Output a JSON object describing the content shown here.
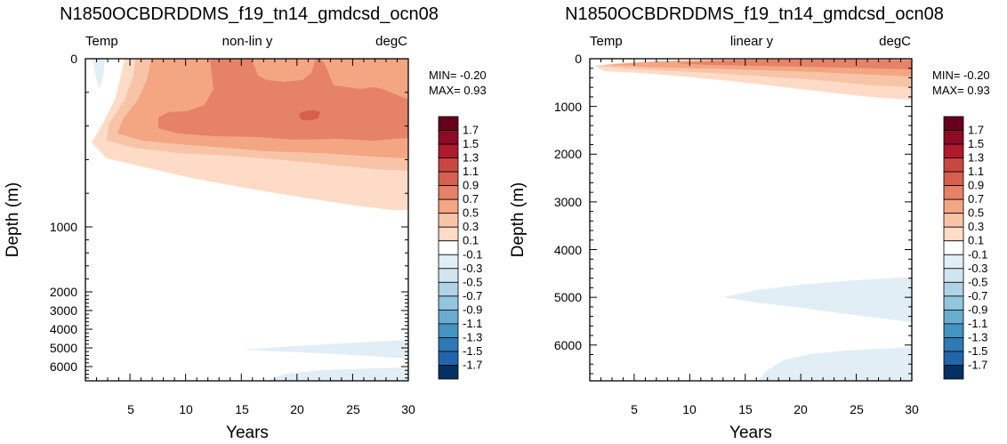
{
  "chart_data": [
    {
      "type": "heatmap",
      "title": "N1850OCBDRDDMS_f19_tn14_gmdcsd_ocn08",
      "left_string": "Temp",
      "center_string": "non-lin y",
      "right_string": "degC",
      "xlabel": "Years",
      "ylabel": "Depth (m)",
      "xlim": [
        1,
        30
      ],
      "ylim": [
        0,
        6750
      ],
      "y_scale": "non-linear (stretched upper ocean)",
      "x_ticks": [
        "5",
        "10",
        "15",
        "20",
        "25",
        "30"
      ],
      "y_ticks": [
        "0",
        "1000",
        "2000",
        "3000",
        "4000",
        "5000",
        "6000"
      ],
      "min_label": "MIN= -0.20",
      "max_label": "MAX=  0.93",
      "legend": "right"
    },
    {
      "type": "heatmap",
      "title": "N1850OCBDRDDMS_f19_tn14_gmdcsd_ocn08",
      "left_string": "Temp",
      "center_string": "linear y",
      "right_string": "degC",
      "xlabel": "Years",
      "ylabel": "Depth (m)",
      "xlim": [
        1,
        30
      ],
      "ylim": [
        0,
        6750
      ],
      "y_scale": "linear",
      "x_ticks": [
        "5",
        "10",
        "15",
        "20",
        "25",
        "30"
      ],
      "y_ticks": [
        "0",
        "1000",
        "2000",
        "3000",
        "4000",
        "5000",
        "6000"
      ],
      "min_label": "MIN= -0.20",
      "max_label": "MAX=  0.93",
      "legend": "right"
    }
  ],
  "colorbar": {
    "labels": [
      "1.7",
      "1.5",
      "1.3",
      "1.1",
      "0.9",
      "0.7",
      "0.5",
      "0.3",
      "0.1",
      "-0.1",
      "-0.3",
      "-0.5",
      "-0.7",
      "-0.9",
      "-1.1",
      "-1.3",
      "-1.5",
      "-1.7"
    ],
    "colors": [
      "#67001f",
      "#8e0b25",
      "#b2182b",
      "#c94741",
      "#d6604d",
      "#e58267",
      "#f4a582",
      "#f8c4a8",
      "#fddbc7",
      "#ffffff",
      "#e2eef6",
      "#d1e5f0",
      "#b0d2e7",
      "#92c5de",
      "#6aacd0",
      "#4393c3",
      "#2f79b5",
      "#2166ac",
      "#053061"
    ]
  },
  "contour_colors": {
    "level_0_1": "#fddbc7",
    "level_0_3": "#f8c4a8",
    "level_0_5": "#f4a582",
    "level_0_7": "#e58267",
    "level_0_9": "#d6604d",
    "level_neg_0_1": "#e2eef6"
  }
}
